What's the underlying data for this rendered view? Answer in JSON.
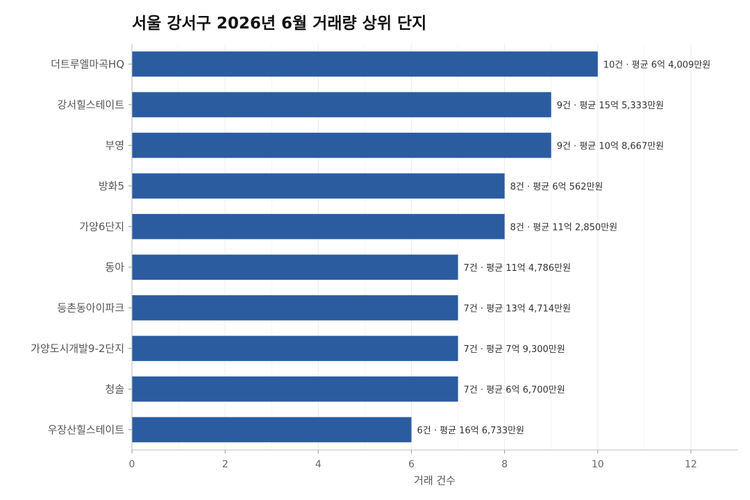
{
  "chart_data": {
    "type": "bar",
    "orientation": "horizontal",
    "title": "서울 강서구 2026년 6월 거래량 상위 단지",
    "xlabel": "거래 건수",
    "ylabel": "",
    "xlim": [
      0,
      13
    ],
    "xticks": [
      0,
      2,
      4,
      6,
      8,
      10,
      12
    ],
    "grid": "vertical",
    "bar_color": "#2B5CA0",
    "categories": [
      "더트루엘마곡HQ",
      "강서힐스테이트",
      "부영",
      "방화5",
      "가양6단지",
      "동아",
      "등촌동아이파크",
      "가양도시개발9-2단지",
      "청솔",
      "우장산힐스테이트"
    ],
    "values": [
      10,
      9,
      9,
      8,
      8,
      7,
      7,
      7,
      7,
      6
    ],
    "data_labels": [
      "10건 · 평균 6억 4,009만원",
      "9건 · 평균 15억 5,333만원",
      "9건 · 평균 10억 8,667만원",
      "8건 · 평균 6억 562만원",
      "8건 · 평균 11억 2,850만원",
      "7건 · 평균 11억 4,786만원",
      "7건 · 평균 13억 4,714만원",
      "7건 · 평균 7억 9,300만원",
      "7건 · 평균 6억 6,700만원",
      "6건 · 평균 16억 6,733만원"
    ]
  }
}
